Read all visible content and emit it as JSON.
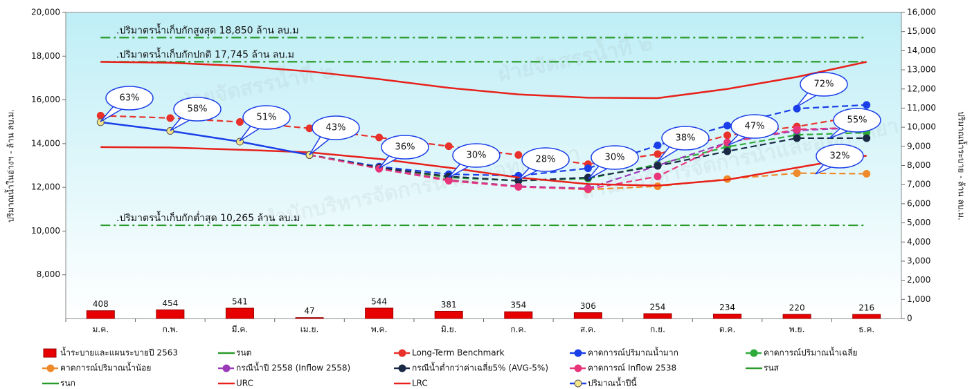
{
  "chart_data": {
    "type": "combo",
    "y_label": "ปริมาณน้ำในอ่างฯ - ล้าน ลบ.ม.",
    "y2_label": "ปริมาณน้ำระบาย - ล้าน ลบ.ม.",
    "categories": [
      "ม.ค.",
      "ก.พ.",
      "มี.ค.",
      "เม.ย.",
      "พ.ค.",
      "มิ.ย.",
      "ก.ค.",
      "ส.ค.",
      "ก.ย.",
      "ต.ค.",
      "พ.ย.",
      "ธ.ค."
    ],
    "ylim": [
      6000,
      20000
    ],
    "yticks": [
      {
        "value": 8000,
        "label": "8,000"
      },
      {
        "value": 10000,
        "label": "10,000"
      },
      {
        "value": 12000,
        "label": "12,000"
      },
      {
        "value": 14000,
        "label": "14,000"
      },
      {
        "value": 16000,
        "label": "16,000"
      },
      {
        "value": 18000,
        "label": "18,000"
      },
      {
        "value": 20000,
        "label": "20,000"
      }
    ],
    "y2lim": [
      0,
      16000
    ],
    "y2ticks": [
      0,
      {
        "value": 1000,
        "label": "1,000"
      },
      {
        "value": 2000,
        "label": "2,000"
      },
      {
        "value": 3000,
        "label": "3,000"
      },
      {
        "value": 4000,
        "label": "4,000"
      },
      {
        "value": 5000,
        "label": "5,000"
      },
      {
        "value": 6000,
        "label": "6,000"
      },
      {
        "value": 7000,
        "label": "7,000"
      },
      {
        "value": 8000,
        "label": "8,000"
      },
      {
        "value": 9000,
        "label": "9,000"
      },
      {
        "value": 10000,
        "label": "10,000"
      },
      {
        "value": 11000,
        "label": "11,000"
      },
      {
        "value": 12000,
        "label": "12,000"
      },
      {
        "value": 13000,
        "label": "13,000"
      },
      {
        "value": 14000,
        "label": "14,000"
      },
      {
        "value": 15000,
        "label": "15,000"
      },
      {
        "value": 16000,
        "label": "16,000"
      }
    ],
    "series": [
      {
        "name": "น้ำระบายและแผนระบายปี 2563",
        "type": "bar",
        "axis": "y2",
        "color": "#e60000",
        "values": [
          408,
          454,
          541,
          47,
          544,
          381,
          354,
          306,
          254,
          234,
          220,
          216
        ]
      },
      {
        "name": "รนต",
        "type": "line",
        "color": "#2a9a2a",
        "dash": "dashdot",
        "values": [
          10265,
          10265,
          10265,
          10265,
          10265,
          10265,
          10265,
          10265,
          10265,
          10265,
          10265,
          10265
        ]
      },
      {
        "name": "Long-Term Benchmark",
        "type": "line",
        "color": "#e8312a",
        "dash": "dashed",
        "marker": true,
        "values": [
          15280,
          15170,
          14990,
          14700,
          14280,
          13880,
          13480,
          13060,
          13520,
          14380,
          14780,
          15320
        ]
      },
      {
        "name": "คาดการณ์ปริมาณน้ำมาก",
        "type": "line",
        "color": "#1a3ee8",
        "dash": "dashed",
        "marker": true,
        "values": [
          null,
          null,
          null,
          13480,
          12950,
          12600,
          12530,
          12870,
          13920,
          14820,
          15600,
          15770
        ]
      },
      {
        "name": "คาดการณ์ปริมาณน้ำเฉลี่ย",
        "type": "line",
        "color": "#2eaa3a",
        "dash": "dashed",
        "marker": true,
        "values": [
          null,
          null,
          null,
          13480,
          12900,
          12450,
          12300,
          12400,
          13050,
          13850,
          14400,
          14500
        ]
      },
      {
        "name": "คาดการณ์ปริมาณน้ำน้อย",
        "type": "line",
        "color": "#ee8a2a",
        "dash": "dashed",
        "marker": true,
        "values": [
          null,
          null,
          null,
          13480,
          12900,
          12350,
          12050,
          11900,
          12050,
          12380,
          12650,
          12620
        ]
      },
      {
        "name": "กรณีน้ำปี 2558 (Inflow 2558)",
        "type": "line",
        "color": "#9a3ab8",
        "dash": "dashed",
        "marker": true,
        "values": [
          null,
          null,
          null,
          13480,
          12880,
          12330,
          12050,
          11950,
          13000,
          14050,
          14600,
          14750
        ]
      },
      {
        "name": "กรณีน้ำต่ำกว่าค่าเฉลี่ย5% (AVG-5%)",
        "type": "line",
        "color": "#1a2a44",
        "dash": "dashed",
        "marker": true,
        "values": [
          null,
          null,
          null,
          13480,
          12900,
          12500,
          12300,
          12450,
          12980,
          13650,
          14250,
          14250
        ]
      },
      {
        "name": "คาดการณ์ Inflow 2538",
        "type": "line",
        "color": "#e8357a",
        "dash": "dashed",
        "marker": true,
        "values": [
          null,
          null,
          null,
          13480,
          12850,
          12300,
          12020,
          11920,
          12500,
          14050,
          14650,
          14750
        ]
      },
      {
        "name": "รนส",
        "type": "line",
        "color": "#2a9a2a",
        "dash": "dashdot",
        "values": [
          18850,
          18850,
          18850,
          18850,
          18850,
          18850,
          18850,
          18850,
          18850,
          18850,
          18850,
          18850
        ]
      },
      {
        "name": "รนก",
        "type": "line",
        "color": "#2a9a2a",
        "dash": "dashdot",
        "values": [
          17745,
          17745,
          17745,
          17745,
          17745,
          17745,
          17745,
          17745,
          17745,
          17745,
          17745,
          17745
        ]
      },
      {
        "name": "URC",
        "type": "line",
        "color": "#e8201a",
        "dash": "solid",
        "values": [
          17740,
          17700,
          17550,
          17300,
          16950,
          16550,
          16250,
          16100,
          16080,
          16500,
          17050,
          17740
        ]
      },
      {
        "name": "LRC",
        "type": "line",
        "color": "#e8201a",
        "dash": "solid",
        "values": [
          13840,
          13820,
          13720,
          13600,
          13300,
          12900,
          12450,
          12150,
          12080,
          12350,
          12900,
          13450
        ]
      },
      {
        "name": "ปริมาณน้ำปีนี้",
        "type": "line",
        "color": "#1a3ee8",
        "dash": "solid",
        "marker": true,
        "marker_color": "#f5e58a",
        "values": [
          14980,
          14580,
          14090,
          13480,
          null,
          null,
          null,
          null,
          null,
          null,
          null,
          null
        ]
      }
    ],
    "annotations": [
      ".ปริมาตรน้ำเก็บกักสูงสุด 18,850 ล้าน ลบ.ม",
      ".ปริมาตรน้ำเก็บกักปกติ 17,745 ล้าน ลบ.ม",
      ".ปริมาตรน้ำเก็บกักต่ำสุด 10,265 ล้าน ลบ.ม"
    ],
    "callouts": [
      "63%",
      "58%",
      "51%",
      "43%",
      "36%",
      "30%",
      "28%",
      "30%",
      "38%",
      "47%",
      "72%",
      "55%",
      "32%"
    ],
    "watermarks": [
      "ฝ่ายจัดสรรน้ำที่ ๒",
      "สำนักบริหารจัดการน้ำและอุทกวิทยา"
    ]
  }
}
